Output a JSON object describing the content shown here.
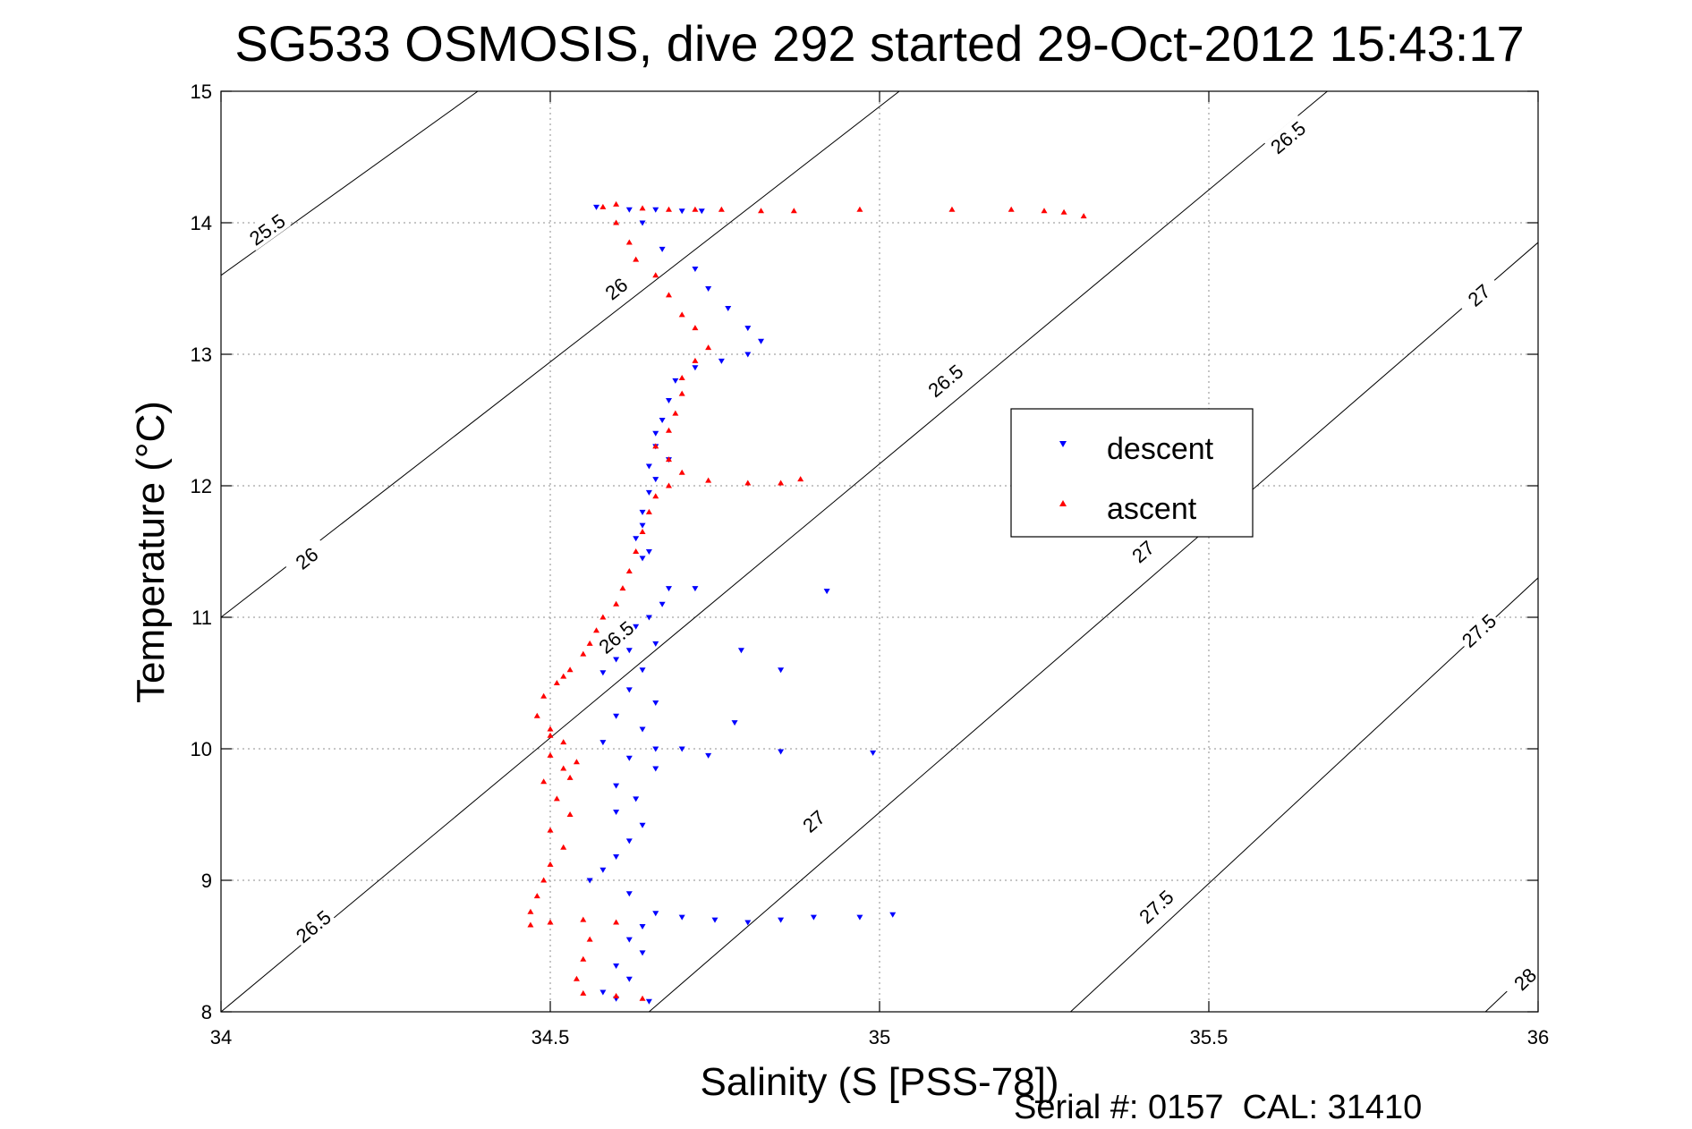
{
  "chart_data": {
    "type": "scatter",
    "title": "SG533 OSMOSIS, dive 292 started 29-Oct-2012 15:43:17",
    "xlabel": "Salinity (S [PSS-78])",
    "ylabel": "Temperature (°C)",
    "xlim": [
      34,
      36
    ],
    "ylim": [
      8,
      15
    ],
    "xticks": [
      "34",
      "34.5",
      "35",
      "35.5",
      "36"
    ],
    "yticks": [
      "8",
      "9",
      "10",
      "11",
      "12",
      "13",
      "14",
      "15"
    ],
    "grid": true,
    "legend_position": "right",
    "footer": "Serial #: 0157  CAL: 31410",
    "series": [
      {
        "name": "descent",
        "color": "#0000ff",
        "marker": "triangle-down",
        "points": [
          [
            34.57,
            14.12
          ],
          [
            34.62,
            14.1
          ],
          [
            34.66,
            14.1
          ],
          [
            34.7,
            14.09
          ],
          [
            34.73,
            14.09
          ],
          [
            34.64,
            14.0
          ],
          [
            34.67,
            13.8
          ],
          [
            34.72,
            13.65
          ],
          [
            34.74,
            13.5
          ],
          [
            34.77,
            13.35
          ],
          [
            34.8,
            13.2
          ],
          [
            34.82,
            13.1
          ],
          [
            34.8,
            13.0
          ],
          [
            34.76,
            12.95
          ],
          [
            34.72,
            12.9
          ],
          [
            34.69,
            12.8
          ],
          [
            34.68,
            12.65
          ],
          [
            34.67,
            12.5
          ],
          [
            34.66,
            12.4
          ],
          [
            34.66,
            12.3
          ],
          [
            34.68,
            12.2
          ],
          [
            34.65,
            12.15
          ],
          [
            34.66,
            12.05
          ],
          [
            34.65,
            11.95
          ],
          [
            34.64,
            11.8
          ],
          [
            34.64,
            11.7
          ],
          [
            34.63,
            11.6
          ],
          [
            34.65,
            11.5
          ],
          [
            34.64,
            11.45
          ],
          [
            34.68,
            11.22
          ],
          [
            34.72,
            11.22
          ],
          [
            34.67,
            11.1
          ],
          [
            34.65,
            11.0
          ],
          [
            34.63,
            10.93
          ],
          [
            34.66,
            10.8
          ],
          [
            34.62,
            10.75
          ],
          [
            34.6,
            10.68
          ],
          [
            34.64,
            10.6
          ],
          [
            34.58,
            10.58
          ],
          [
            34.62,
            10.45
          ],
          [
            34.66,
            10.35
          ],
          [
            34.6,
            10.25
          ],
          [
            34.64,
            10.15
          ],
          [
            34.58,
            10.05
          ],
          [
            34.66,
            10.0
          ],
          [
            34.7,
            10.0
          ],
          [
            34.62,
            9.93
          ],
          [
            34.66,
            9.85
          ],
          [
            34.6,
            9.72
          ],
          [
            34.63,
            9.62
          ],
          [
            34.6,
            9.52
          ],
          [
            34.64,
            9.42
          ],
          [
            34.62,
            9.3
          ],
          [
            34.6,
            9.18
          ],
          [
            34.58,
            9.08
          ],
          [
            34.56,
            9.0
          ],
          [
            34.62,
            8.9
          ],
          [
            34.66,
            8.75
          ],
          [
            34.7,
            8.72
          ],
          [
            34.75,
            8.7
          ],
          [
            34.8,
            8.68
          ],
          [
            34.85,
            8.7
          ],
          [
            34.9,
            8.72
          ],
          [
            34.97,
            8.72
          ],
          [
            35.02,
            8.74
          ],
          [
            34.64,
            8.65
          ],
          [
            34.62,
            8.55
          ],
          [
            34.64,
            8.45
          ],
          [
            34.6,
            8.35
          ],
          [
            34.62,
            8.25
          ],
          [
            34.58,
            8.15
          ],
          [
            34.6,
            8.1
          ],
          [
            34.65,
            8.08
          ],
          [
            34.79,
            10.75
          ],
          [
            34.85,
            10.6
          ],
          [
            34.92,
            11.2
          ],
          [
            34.85,
            9.98
          ],
          [
            34.99,
            9.97
          ],
          [
            34.78,
            10.2
          ],
          [
            34.74,
            9.95
          ]
        ]
      },
      {
        "name": "ascent",
        "color": "#ff0000",
        "marker": "triangle-up",
        "points": [
          [
            34.58,
            14.12
          ],
          [
            34.6,
            14.14
          ],
          [
            34.64,
            14.11
          ],
          [
            34.68,
            14.1
          ],
          [
            34.72,
            14.1
          ],
          [
            34.76,
            14.1
          ],
          [
            34.82,
            14.09
          ],
          [
            34.87,
            14.09
          ],
          [
            34.97,
            14.1
          ],
          [
            35.11,
            14.1
          ],
          [
            35.2,
            14.1
          ],
          [
            35.25,
            14.09
          ],
          [
            35.28,
            14.08
          ],
          [
            35.31,
            14.05
          ],
          [
            34.6,
            14.0
          ],
          [
            34.62,
            13.85
          ],
          [
            34.63,
            13.72
          ],
          [
            34.66,
            13.6
          ],
          [
            34.68,
            13.45
          ],
          [
            34.7,
            13.3
          ],
          [
            34.72,
            13.2
          ],
          [
            34.74,
            13.05
          ],
          [
            34.72,
            12.95
          ],
          [
            34.7,
            12.82
          ],
          [
            34.7,
            12.7
          ],
          [
            34.69,
            12.55
          ],
          [
            34.68,
            12.42
          ],
          [
            34.66,
            12.3
          ],
          [
            34.68,
            12.2
          ],
          [
            34.7,
            12.1
          ],
          [
            34.74,
            12.04
          ],
          [
            34.8,
            12.02
          ],
          [
            34.85,
            12.02
          ],
          [
            34.88,
            12.05
          ],
          [
            34.68,
            12.0
          ],
          [
            34.66,
            11.92
          ],
          [
            34.65,
            11.8
          ],
          [
            34.64,
            11.65
          ],
          [
            34.63,
            11.5
          ],
          [
            34.62,
            11.35
          ],
          [
            34.61,
            11.22
          ],
          [
            34.6,
            11.1
          ],
          [
            34.58,
            11.0
          ],
          [
            34.57,
            10.9
          ],
          [
            34.56,
            10.8
          ],
          [
            34.55,
            10.72
          ],
          [
            34.53,
            10.6
          ],
          [
            34.51,
            10.5
          ],
          [
            34.49,
            10.4
          ],
          [
            34.48,
            10.25
          ],
          [
            34.5,
            10.15
          ],
          [
            34.52,
            10.05
          ],
          [
            34.5,
            9.95
          ],
          [
            34.52,
            9.85
          ],
          [
            34.49,
            9.75
          ],
          [
            34.51,
            9.62
          ],
          [
            34.53,
            9.5
          ],
          [
            34.5,
            9.38
          ],
          [
            34.52,
            9.25
          ],
          [
            34.5,
            9.12
          ],
          [
            34.49,
            9.0
          ],
          [
            34.48,
            8.88
          ],
          [
            34.47,
            8.76
          ],
          [
            34.47,
            8.66
          ],
          [
            34.5,
            8.68
          ],
          [
            34.55,
            8.7
          ],
          [
            34.6,
            8.68
          ],
          [
            34.56,
            8.55
          ],
          [
            34.55,
            8.4
          ],
          [
            34.54,
            8.25
          ],
          [
            34.55,
            8.14
          ],
          [
            34.6,
            8.12
          ],
          [
            34.64,
            8.1
          ],
          [
            34.53,
            9.78
          ],
          [
            34.54,
            9.9
          ],
          [
            34.52,
            10.55
          ],
          [
            34.5,
            10.1
          ]
        ]
      }
    ],
    "contours": [
      {
        "label": "25.5",
        "values": [
          [
            34.0,
            13.6
          ],
          [
            34.39,
            15.0
          ]
        ],
        "labels_at": [
          [
            34.07,
            13.95
          ]
        ]
      },
      {
        "label": "26",
        "values": [
          [
            34.0,
            11.0
          ],
          [
            35.03,
            15.0
          ]
        ],
        "labels_at": [
          [
            34.6,
            13.5
          ],
          [
            34.13,
            11.45
          ]
        ]
      },
      {
        "label": "26.5",
        "values": [
          [
            34.0,
            8.0
          ],
          [
            35.68,
            15.0
          ]
        ],
        "labels_at": [
          [
            35.62,
            14.65
          ],
          [
            35.1,
            12.8
          ],
          [
            34.6,
            10.85
          ],
          [
            34.14,
            8.65
          ]
        ]
      },
      {
        "label": "27",
        "values": [
          [
            34.65,
            8.0
          ],
          [
            36.0,
            13.85
          ]
        ],
        "labels_at": [
          [
            35.91,
            13.45
          ],
          [
            35.4,
            11.5
          ],
          [
            34.9,
            9.45
          ]
        ]
      },
      {
        "label": "27.5",
        "values": [
          [
            35.29,
            8.0
          ],
          [
            36.0,
            11.3
          ]
        ],
        "labels_at": [
          [
            35.91,
            10.9
          ],
          [
            35.42,
            8.8
          ]
        ]
      },
      {
        "label": "28",
        "values": [
          [
            35.92,
            8.0
          ],
          [
            36.0,
            8.38
          ]
        ],
        "labels_at": [
          [
            35.98,
            8.25
          ]
        ]
      }
    ]
  }
}
